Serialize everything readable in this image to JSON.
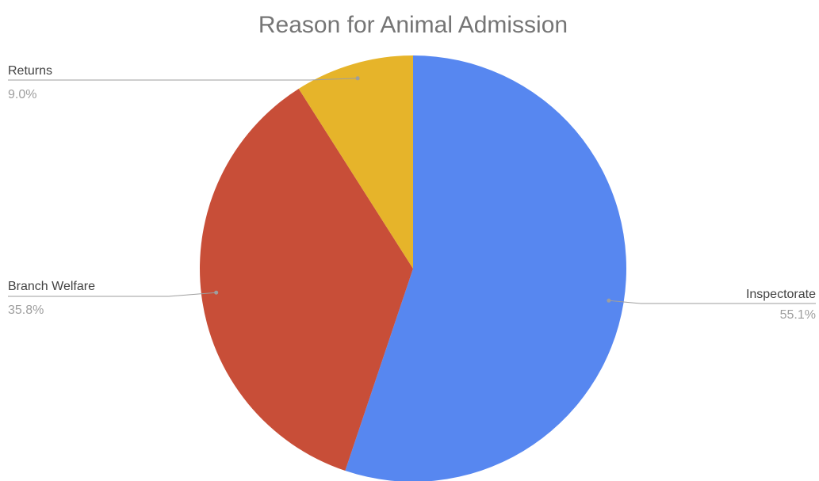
{
  "chart_data": {
    "type": "pie",
    "title": "Reason for Animal Admission",
    "slices": [
      {
        "label": "Inspectorate",
        "value": 55.1,
        "display": "55.1%",
        "color": "#5787F0"
      },
      {
        "label": "Branch Welfare",
        "value": 35.8,
        "display": "35.8%",
        "color": "#C84E38"
      },
      {
        "label": "Returns",
        "value": 9.0,
        "display": "9.0%",
        "color": "#E6B42A"
      }
    ],
    "legend": "none",
    "labels": "outside with leader lines"
  }
}
